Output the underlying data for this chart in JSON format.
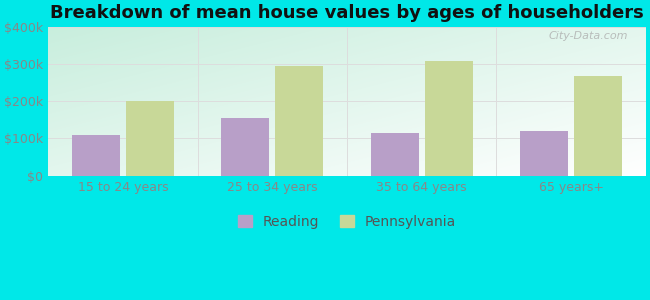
{
  "title": "Breakdown of mean house values by ages of householders",
  "categories": [
    "15 to 24 years",
    "25 to 34 years",
    "35 to 64 years",
    "65 years+"
  ],
  "reading_values": [
    110000,
    155000,
    115000,
    120000
  ],
  "pennsylvania_values": [
    200000,
    295000,
    308000,
    268000
  ],
  "reading_color": "#b89fc8",
  "pennsylvania_color": "#c8d898",
  "background_color": "#00e8e8",
  "ylim": [
    0,
    400000
  ],
  "yticks": [
    0,
    100000,
    200000,
    300000,
    400000
  ],
  "ytick_labels": [
    "$0",
    "$100k",
    "$200k",
    "$300k",
    "$400k"
  ],
  "bar_width": 0.32,
  "title_fontsize": 13,
  "tick_fontsize": 9,
  "legend_fontsize": 10,
  "watermark_text": "City-Data.com",
  "grid_color": "#dddddd",
  "tick_color": "#888888"
}
